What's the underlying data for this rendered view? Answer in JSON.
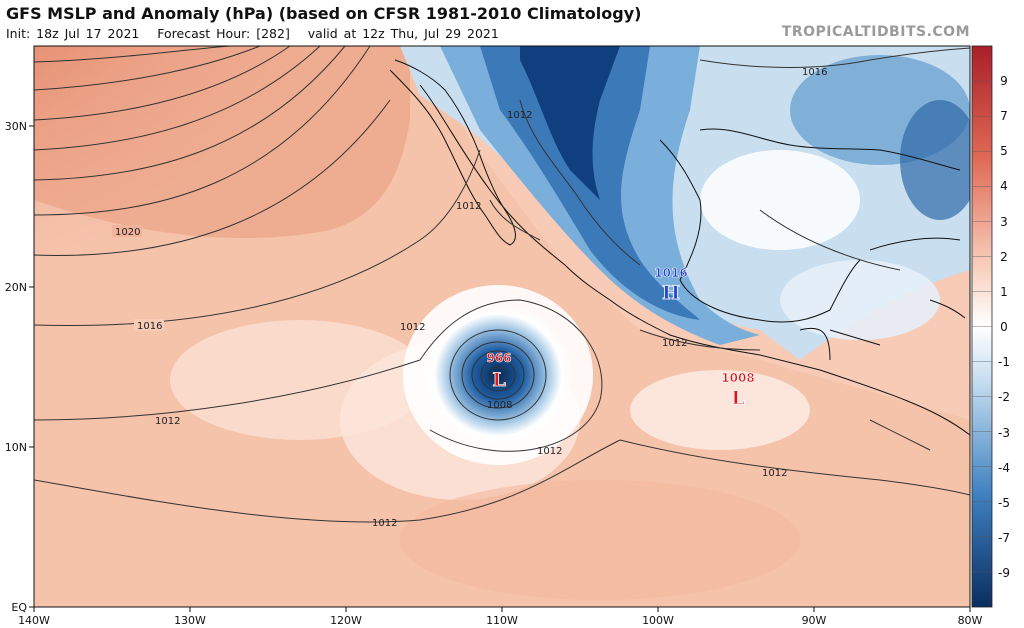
{
  "header": {
    "title": "GFS MSLP and Anomaly (hPa) (based on CFSR 1981-2010 Climatology)",
    "init": "Init: 18z Jul 17 2021",
    "forecast_hour": "Forecast Hour: [282]",
    "valid": "valid at 12z Thu, Jul 29 2021",
    "watermark": "TROPICALTIDBITS.COM"
  },
  "axes": {
    "lat_labels": [
      "30N",
      "20N",
      "10N",
      "EQ"
    ],
    "lon_labels": [
      "140W",
      "130W",
      "120W",
      "110W",
      "100W",
      "90W",
      "80W"
    ]
  },
  "colorbar": {
    "labels": [
      "9",
      "7",
      "5",
      "4",
      "3",
      "2",
      "1",
      "0",
      "-1",
      "-2",
      "-3",
      "-4",
      "-5",
      "-7",
      "-9"
    ],
    "colors": {
      "positive_strong": "#b5252b",
      "positive_mid": "#e8836a",
      "positive_weak": "#f7c9b4",
      "neutral": "#ffffff",
      "negative_weak": "#c4dcef",
      "negative_mid": "#4f8ec6",
      "negative_strong": "#0c3a78"
    }
  },
  "isobars": [
    "1020",
    "1016",
    "1012",
    "1012",
    "1012",
    "1012",
    "1008",
    "1012",
    "1012",
    "1012",
    "1012",
    "1016"
  ],
  "systems": [
    {
      "type": "L",
      "value": "966",
      "color": "#d7191c"
    },
    {
      "type": "H",
      "value": "1016",
      "color": "#1f3fd0"
    },
    {
      "type": "L",
      "value": "1008",
      "color": "#d7191c"
    }
  ]
}
